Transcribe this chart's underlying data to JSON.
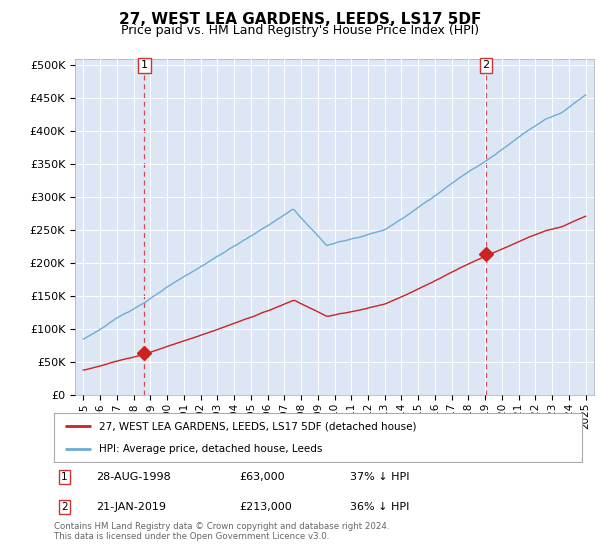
{
  "title": "27, WEST LEA GARDENS, LEEDS, LS17 5DF",
  "subtitle": "Price paid vs. HM Land Registry's House Price Index (HPI)",
  "title_fontsize": 11,
  "subtitle_fontsize": 9,
  "bg_color": "#dce6f5",
  "sale1_date_x": 1998.65,
  "sale1_price": 63000,
  "sale2_date_x": 2019.05,
  "sale2_price": 213000,
  "hpi_color": "#6baed6",
  "price_color": "#cc2222",
  "dashed_color": "#cc3333",
  "yticks": [
    0,
    50000,
    100000,
    150000,
    200000,
    250000,
    300000,
    350000,
    400000,
    450000,
    500000
  ],
  "xlim": [
    1994.5,
    2025.5
  ],
  "ylim": [
    0,
    510000
  ],
  "footer": "Contains HM Land Registry data © Crown copyright and database right 2024.\nThis data is licensed under the Open Government Licence v3.0.",
  "legend_label1": "27, WEST LEA GARDENS, LEEDS, LS17 5DF (detached house)",
  "legend_label2": "HPI: Average price, detached house, Leeds"
}
